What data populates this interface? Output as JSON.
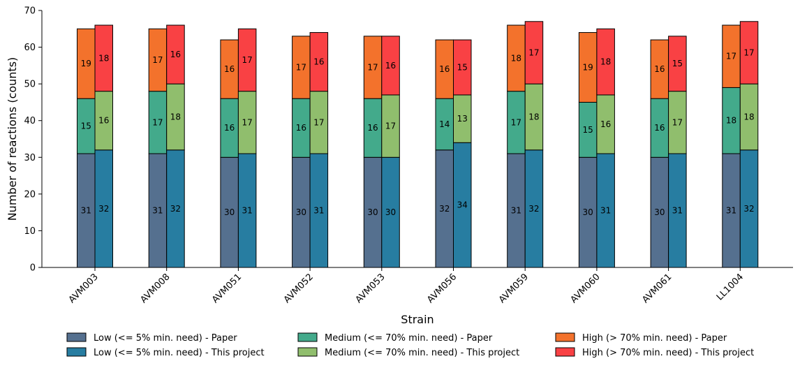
{
  "chart_data": {
    "type": "bar",
    "stacked": true,
    "grouped": true,
    "title": "",
    "xlabel": "Strain",
    "ylabel": "Number of reactions (counts)",
    "ylim": [
      0,
      70
    ],
    "yticks": [
      0,
      10,
      20,
      30,
      40,
      50,
      60,
      70
    ],
    "grid": false,
    "legend_position": "bottom",
    "categories": [
      "AVM003",
      "AVM008",
      "AVM051",
      "AVM052",
      "AVM053",
      "AVM056",
      "AVM059",
      "AVM060",
      "AVM061",
      "LL1004"
    ],
    "groups": [
      {
        "name": "Paper",
        "series": [
          {
            "name": "Low  (<= 5% min. need) - Paper",
            "color": "#55708f",
            "values": [
              31,
              31,
              30,
              30,
              30,
              32,
              31,
              30,
              30,
              31
            ]
          },
          {
            "name": "Medium  (<= 70% min. need) - Paper",
            "color": "#43aa8b",
            "values": [
              15,
              17,
              16,
              16,
              16,
              14,
              17,
              15,
              16,
              18
            ]
          },
          {
            "name": "High  (> 70% min. need) - Paper",
            "color": "#f3722c",
            "values": [
              19,
              17,
              16,
              17,
              17,
              16,
              18,
              19,
              16,
              17
            ]
          }
        ]
      },
      {
        "name": "This project",
        "series": [
          {
            "name": "Low  (<= 5% min. need) - This project",
            "color": "#277da1",
            "values": [
              32,
              32,
              31,
              31,
              30,
              34,
              32,
              31,
              31,
              32
            ]
          },
          {
            "name": "Medium  (<= 70% min. need) - This project",
            "color": "#90be6d",
            "values": [
              16,
              18,
              17,
              17,
              17,
              13,
              18,
              16,
              17,
              18
            ]
          },
          {
            "name": "High  (> 70% min. need) - This project",
            "color": "#f94144",
            "values": [
              18,
              16,
              17,
              16,
              16,
              15,
              17,
              18,
              15,
              17
            ]
          }
        ]
      }
    ],
    "legend": [
      "Low  (<= 5% min. need) - Paper",
      "Medium  (<= 70% min. need) - Paper",
      "High  (> 70% min. need) - Paper",
      "Low  (<= 5% min. need) - This project",
      "Medium  (<= 70% min. need) - This project",
      "High  (> 70% min. need) - This project"
    ]
  }
}
